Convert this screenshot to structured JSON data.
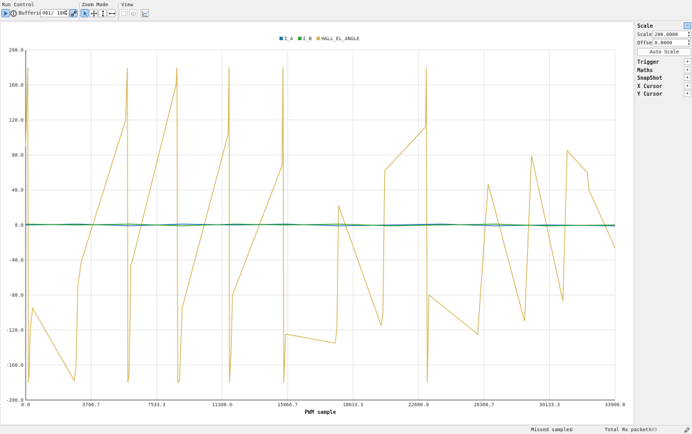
{
  "toolbar": {
    "run_control_title": "Run Control",
    "zoom_mode_title": "Zoom Mode",
    "view_title": "View",
    "buffering_label": "Buffering",
    "buffer_value": "061/ 100",
    "icons": [
      "play-icon",
      "info-icon",
      "link-icon",
      "pointer-icon",
      "move-icon",
      "zoom-vertical-icon",
      "zoom-horizontal-icon",
      "fit-icon",
      "snapshot-icon",
      "chart-icon"
    ]
  },
  "sidebar": {
    "scale_title": "Scale",
    "scale_toggle": "−",
    "scale_label": "Scale",
    "scale_value": "200.0000",
    "offset_label": "Offset",
    "offset_value": "0.0000",
    "auto_scale": "Auto Scale",
    "sections": [
      {
        "label": "Trigger",
        "toggle": "+"
      },
      {
        "label": "Maths",
        "toggle": "+"
      },
      {
        "label": "SnapShot",
        "toggle": "+"
      },
      {
        "label": "X Cursor",
        "toggle": "+"
      },
      {
        "label": "Y Cursor",
        "toggle": "+"
      }
    ]
  },
  "status": {
    "missed_label": "Missed samples",
    "missed_value": "0",
    "total_label": "Total Rx packets",
    "total_value": "389"
  },
  "chart_data": {
    "type": "line",
    "title": "",
    "xlabel": "PWM sample",
    "ylabel": "",
    "xlim": [
      0,
      33900
    ],
    "ylim": [
      -200,
      200
    ],
    "grid": true,
    "legend_position": "top-center",
    "x_ticks": [
      "0.0",
      "3766.7",
      "7533.3",
      "11300.0",
      "15066.7",
      "18833.3",
      "22600.0",
      "26366.7",
      "30133.3",
      "33900.0"
    ],
    "y_ticks": [
      "200.0",
      "160.0",
      "120.0",
      "80.0",
      "40.0",
      "0.0",
      "-40.0",
      "-80.0",
      "-120.0",
      "-160.0",
      "-200.0"
    ],
    "series": [
      {
        "name": "I_A",
        "color": "#1f77b4",
        "x": [
          0,
          3000,
          6000,
          9000,
          12000,
          15000,
          18000,
          21000,
          24000,
          27000,
          30000,
          33900
        ],
        "y": [
          0,
          1,
          -1,
          1,
          0,
          1,
          -1,
          0,
          1,
          -1,
          0,
          -1
        ]
      },
      {
        "name": "I_B",
        "color": "#2ca02c",
        "x": [
          0,
          3000,
          6000,
          9000,
          12000,
          15000,
          18000,
          21000,
          24000,
          27000,
          30000,
          33900
        ],
        "y": [
          1,
          0,
          1,
          -1,
          1,
          0,
          1,
          -1,
          0,
          1,
          -1,
          0
        ]
      },
      {
        "name": "HALL_EL_ANGLE",
        "color": "#d4b24c",
        "x": [
          0,
          80,
          120,
          160,
          200,
          220,
          260,
          400,
          2800,
          2900,
          3000,
          3200,
          5750,
          5850,
          5880,
          5950,
          6050,
          6150,
          8650,
          8700,
          8750,
          8850,
          9000,
          11650,
          11700,
          11720,
          11800,
          11900,
          14750,
          14800,
          14850,
          14950,
          15050,
          17800,
          17900,
          18000,
          20450,
          20550,
          20650,
          23000,
          23050,
          23100,
          23200,
          26000,
          26600,
          28700,
          29100,
          30900,
          31150,
          32300,
          32400,
          33900
        ],
        "y": [
          90,
          150,
          180,
          -180,
          -170,
          -150,
          -120,
          -95,
          -178,
          -160,
          -70,
          -42,
          120,
          180,
          -180,
          -170,
          -46,
          -40,
          160,
          180,
          -180,
          -178,
          -95,
          104,
          180,
          -180,
          -150,
          -80,
          68,
          180,
          -180,
          -125,
          -125,
          -135,
          -120,
          22,
          -115,
          -100,
          62,
          112,
          180,
          -180,
          -80,
          -125,
          47,
          -110,
          79,
          -87,
          85,
          60,
          40,
          -26
        ]
      }
    ]
  }
}
